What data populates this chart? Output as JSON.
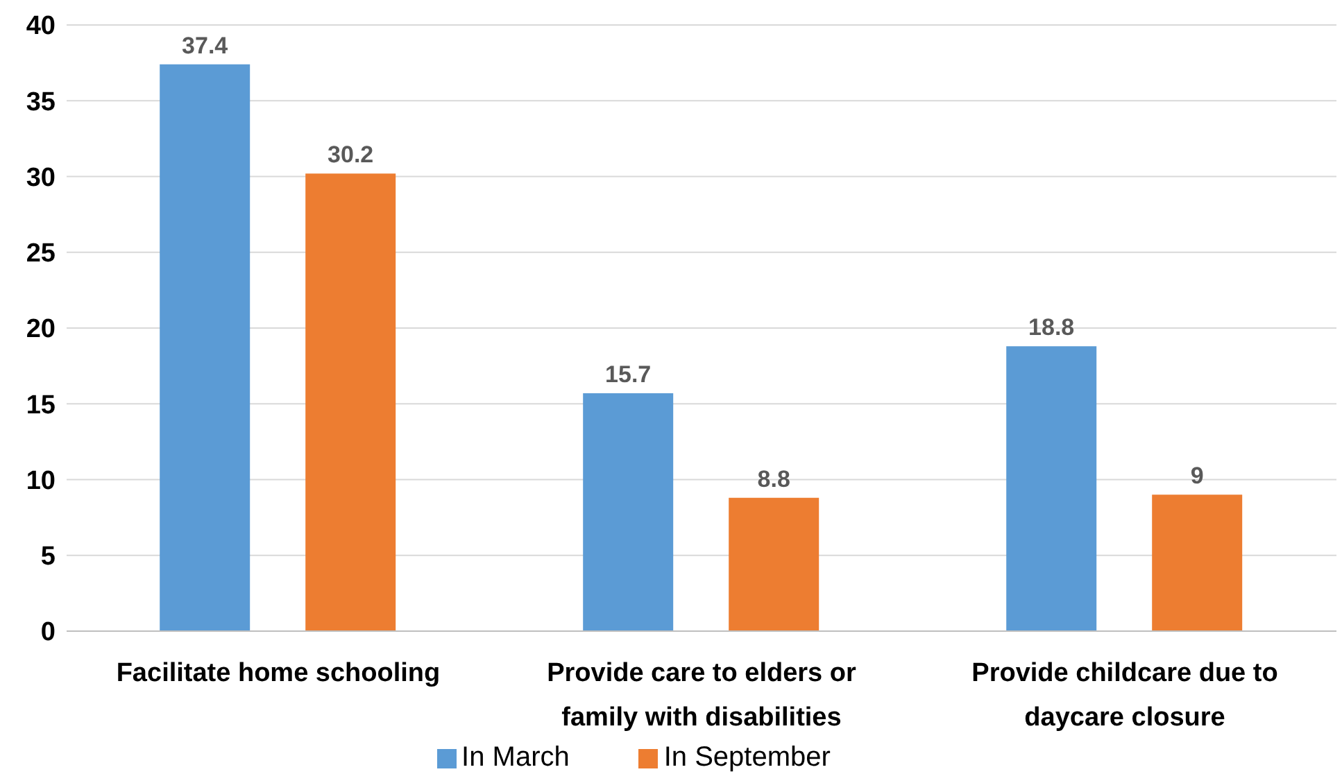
{
  "chart_data": {
    "type": "bar",
    "categories": [
      "Facilitate home schooling",
      "Provide care to elders or family with disabilities",
      "Provide childcare due to daycare closure"
    ],
    "series": [
      {
        "name": "In March",
        "color": "#5b9bd5",
        "values": [
          37.4,
          15.7,
          18.8
        ]
      },
      {
        "name": "In September",
        "color": "#ed7d31",
        "values": [
          30.2,
          8.8,
          9
        ]
      }
    ],
    "ylim": [
      0,
      40
    ],
    "yticks": [
      0,
      5,
      10,
      15,
      20,
      25,
      30,
      35,
      40
    ],
    "grid": "y",
    "legend": "bottom",
    "data_labels": true
  }
}
